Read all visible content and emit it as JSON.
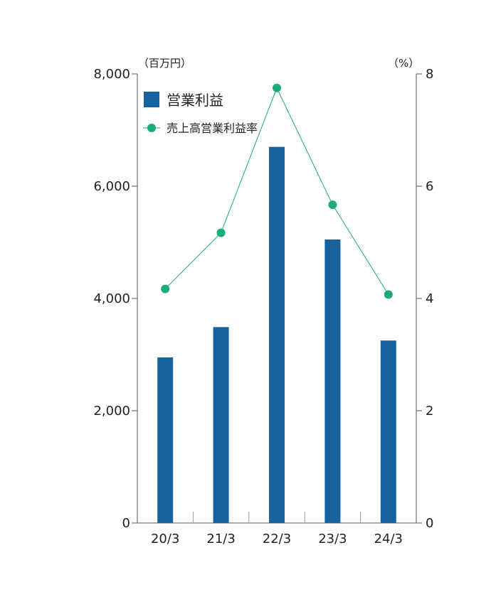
{
  "chart_data": {
    "type": "bar",
    "categories": [
      "20/3",
      "21/3",
      "22/3",
      "23/3",
      "24/3"
    ],
    "series": [
      {
        "name": "営業利益",
        "type": "bar",
        "axis": "left",
        "color": "#17629c",
        "values": [
          2950,
          3490,
          6700,
          5050,
          3250
        ]
      },
      {
        "name": "売上高営業利益率",
        "type": "line",
        "axis": "right",
        "color": "#1bab7c",
        "values": [
          4.17,
          5.17,
          7.75,
          5.67,
          4.07
        ]
      }
    ],
    "y_left": {
      "unit": "（百万円）",
      "ylim": [
        0,
        8000
      ],
      "ticks": [
        0,
        2000,
        4000,
        6000,
        8000
      ],
      "tick_labels": [
        "0",
        "2,000",
        "4,000",
        "6,000",
        "8,000"
      ]
    },
    "y_right": {
      "unit": "（%）",
      "ylim": [
        0,
        8
      ],
      "ticks": [
        0,
        2,
        4,
        6,
        8
      ],
      "tick_labels": [
        "0",
        "2",
        "4",
        "6",
        "8"
      ]
    },
    "legend_position": "top-left",
    "grid": false
  }
}
